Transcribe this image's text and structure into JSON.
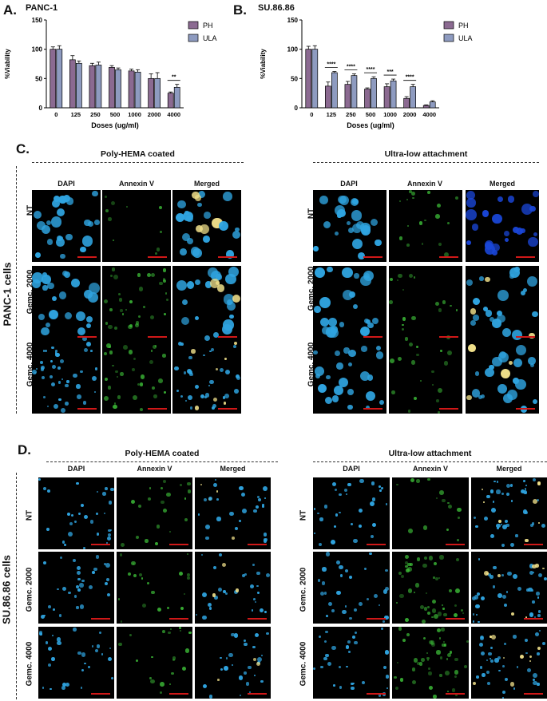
{
  "panels": {
    "a_letter": "A.",
    "b_letter": "B.",
    "c_letter": "C.",
    "d_letter": "D."
  },
  "chart_data": [
    {
      "type": "bar",
      "title": "PANC-1",
      "xlabel": "Doses (ug/ml)",
      "ylabel": "%Viability",
      "ylim": [
        0,
        150
      ],
      "yticks": [
        "0",
        "50",
        "100",
        "150"
      ],
      "categories": [
        "0",
        "125",
        "250",
        "500",
        "1000",
        "2000",
        "4000"
      ],
      "series": [
        {
          "name": "PH",
          "color": "#8b6a91",
          "values": [
            100,
            82,
            72,
            69,
            63,
            50,
            25
          ],
          "errors": [
            4,
            7,
            4,
            3,
            3,
            8,
            2
          ]
        },
        {
          "name": "ULA",
          "color": "#8e9bc0",
          "values": [
            100,
            76,
            73,
            65,
            61,
            50,
            35
          ],
          "errors": [
            6,
            4,
            5,
            3,
            4,
            10,
            5
          ]
        }
      ],
      "annotations": [
        {
          "category": "4000",
          "text": "**"
        }
      ],
      "legend_position": "top-right",
      "grid": false
    },
    {
      "type": "bar",
      "title": "SU.86.86",
      "xlabel": "Doses (ug/ml)",
      "ylabel": "%Viability",
      "ylim": [
        0,
        150
      ],
      "yticks": [
        "0",
        "50",
        "100",
        "150"
      ],
      "categories": [
        "0",
        "125",
        "250",
        "500",
        "1000",
        "2000",
        "4000"
      ],
      "series": [
        {
          "name": "PH",
          "color": "#8b6a91",
          "values": [
            100,
            37,
            40,
            32,
            36,
            16,
            4
          ],
          "errors": [
            5,
            7,
            5,
            2,
            5,
            3,
            1
          ]
        },
        {
          "name": "ULA",
          "color": "#8e9bc0",
          "values": [
            100,
            60,
            55,
            50,
            46,
            36,
            10
          ],
          "errors": [
            6,
            2,
            3,
            3,
            3,
            4,
            2
          ]
        }
      ],
      "annotations": [
        {
          "category": "125",
          "text": "****"
        },
        {
          "category": "250",
          "text": "****"
        },
        {
          "category": "500",
          "text": "****"
        },
        {
          "category": "1000",
          "text": "***"
        },
        {
          "category": "2000",
          "text": "****"
        }
      ],
      "legend_position": "top-right",
      "grid": false
    }
  ],
  "sections": {
    "ph_title": "Poly-HEMA coated",
    "ula_title": "Ultra-low attachment",
    "col_dapi": "DAPI",
    "col_annexin": "Annexin V",
    "col_merged": "Merged",
    "row_nt": "NT",
    "row_2000": "Gemc. 2000",
    "row_4000": "Gemc. 4000",
    "cell_panc": "PANC-1 cells",
    "cell_su": "SU.86.86 cells"
  },
  "colors": {
    "dapi": "#2fa4e0",
    "dapi_dark": "#1a46d8",
    "annexin": "#3fc43a",
    "merged_highlight": "#f0e08a",
    "scale_bar": "#d01818"
  }
}
